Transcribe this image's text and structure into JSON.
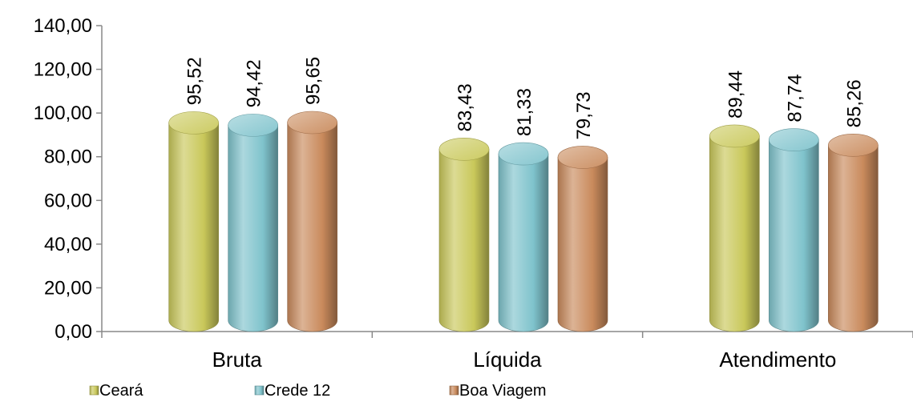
{
  "chart_data": {
    "type": "bar",
    "title": "",
    "xlabel": "",
    "ylabel": "",
    "categories": [
      "Bruta",
      "Líquida",
      "Atendimento"
    ],
    "series": [
      {
        "name": "Ceará",
        "values": [
          95.52,
          83.43,
          89.44
        ],
        "color": "#c9c85a",
        "labels": [
          "95,52",
          "83,43",
          "89,44"
        ]
      },
      {
        "name": "Crede 12",
        "values": [
          94.42,
          81.33,
          87.74
        ],
        "color": "#7fc3cc",
        "labels": [
          "94,42",
          "81,33",
          "87,74"
        ]
      },
      {
        "name": "Boa Viagem",
        "values": [
          95.65,
          79.73,
          85.26
        ],
        "color": "#c98a5c",
        "labels": [
          "95,65",
          "79,73",
          "85,26"
        ]
      }
    ],
    "ylim": [
      0,
      140
    ],
    "yticks": [
      0,
      20,
      40,
      60,
      80,
      100,
      120,
      140
    ],
    "ytick_labels": [
      "0,00",
      "20,00",
      "40,00",
      "60,00",
      "80,00",
      "100,00",
      "120,00",
      "140,00"
    ],
    "grid": false,
    "legend_position": "bottom-left"
  }
}
